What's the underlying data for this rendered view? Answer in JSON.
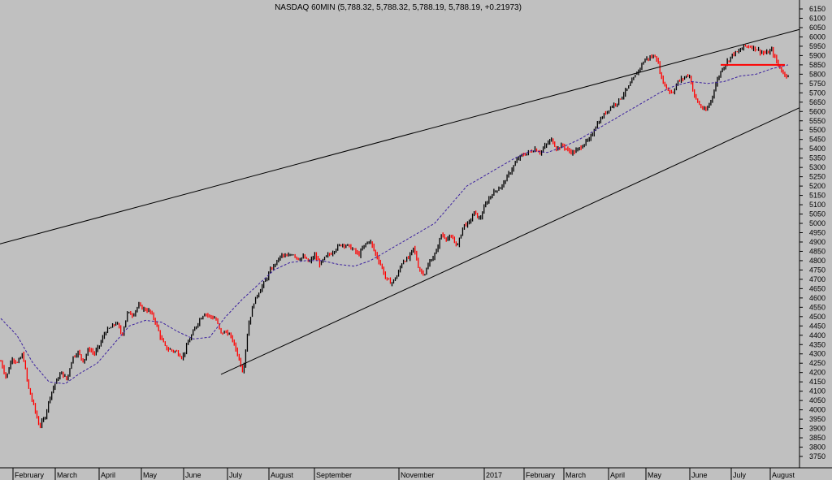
{
  "chart_data": {
    "type": "line",
    "title": "NASDAQ 60MIN (5,788.32, 5,788.32, 5,788.19, 5,788.19, +0.21973)",
    "ylim": [
      3700,
      6200
    ],
    "y_ticks": [
      3750,
      3800,
      3850,
      3900,
      3950,
      4000,
      4050,
      4100,
      4150,
      4200,
      4250,
      4300,
      4350,
      4400,
      4450,
      4500,
      4550,
      4600,
      4650,
      4700,
      4750,
      4800,
      4850,
      4900,
      4950,
      5000,
      5050,
      5100,
      5150,
      5200,
      5250,
      5300,
      5350,
      5400,
      5450,
      5500,
      5550,
      5600,
      5650,
      5700,
      5750,
      5800,
      5850,
      5900,
      5950,
      6000,
      6050,
      6100,
      6150
    ],
    "x_ticks": [
      "February",
      "March",
      "April",
      "May",
      "June",
      "July",
      "August",
      "September",
      "November",
      "2017",
      "February",
      "March",
      "April",
      "May",
      "June",
      "July",
      "August"
    ],
    "grid": false,
    "series": [
      {
        "values": [
          4260,
          4170,
          4280,
          4250,
          4300,
          4120,
          4020,
          3910,
          3960,
          4080,
          4150,
          4200,
          4160,
          4280,
          4310,
          4260,
          4330,
          4300,
          4350,
          4420,
          4440,
          4470,
          4400,
          4520,
          4510,
          4560,
          4540,
          4530,
          4480,
          4390,
          4330,
          4320,
          4310,
          4280,
          4360,
          4420,
          4480,
          4520,
          4500,
          4490,
          4410,
          4420,
          4380,
          4300,
          4200,
          4460,
          4580,
          4640,
          4690,
          4750,
          4790,
          4830,
          4820,
          4840,
          4810,
          4820,
          4790,
          4830,
          4780,
          4820,
          4840,
          4870,
          4890,
          4880,
          4860,
          4830,
          4880,
          4910,
          4840,
          4780,
          4700,
          4680,
          4720,
          4800,
          4810,
          4870,
          4750,
          4730,
          4800,
          4840,
          4940,
          4920,
          4920,
          4880,
          4990,
          5000,
          5060,
          5020,
          5100,
          5150,
          5180,
          5200,
          5250,
          5300,
          5350,
          5370,
          5380,
          5400,
          5380,
          5420,
          5450,
          5400,
          5420,
          5390,
          5380,
          5400,
          5430,
          5450,
          5520,
          5560,
          5600,
          5630,
          5650,
          5690,
          5730,
          5780,
          5830,
          5880,
          5890,
          5900,
          5780,
          5720,
          5700,
          5760,
          5780,
          5800,
          5680,
          5630,
          5600,
          5660,
          5760,
          5830,
          5870,
          5910,
          5920,
          5950,
          5950,
          5940,
          5920,
          5910,
          5930,
          5860,
          5810,
          5790
        ]
      },
      {
        "values": [
          4490,
          4400,
          4250,
          4150,
          4140,
          4200,
          4250,
          4350,
          4450,
          4480,
          4470,
          4420,
          4380,
          4390,
          4500,
          4590,
          4670,
          4750,
          4790,
          4800,
          4800,
          4780,
          4770,
          4800,
          4850,
          4900,
          4950,
          5000,
          5100,
          5200,
          5250,
          5300,
          5350,
          5390,
          5380,
          5410,
          5450,
          5500,
          5550,
          5600,
          5650,
          5700,
          5740,
          5760,
          5750,
          5760,
          5790,
          5800,
          5830,
          5850
        ]
      }
    ],
    "annotations": {
      "upper_trendline": [
        [
          "start",
          4890
        ],
        [
          "end",
          6040
        ]
      ],
      "lower_trendline": [
        [
          "July",
          4190
        ],
        [
          "end",
          5620
        ]
      ],
      "horizontal_level": 5850
    },
    "colors": {
      "background": "#c0c0c0",
      "up_bar": "#000000",
      "down_bar": "#ff0000",
      "moving_average": "#3a1f9e",
      "trendline": "#000000",
      "level_line": "#ff0000"
    }
  }
}
